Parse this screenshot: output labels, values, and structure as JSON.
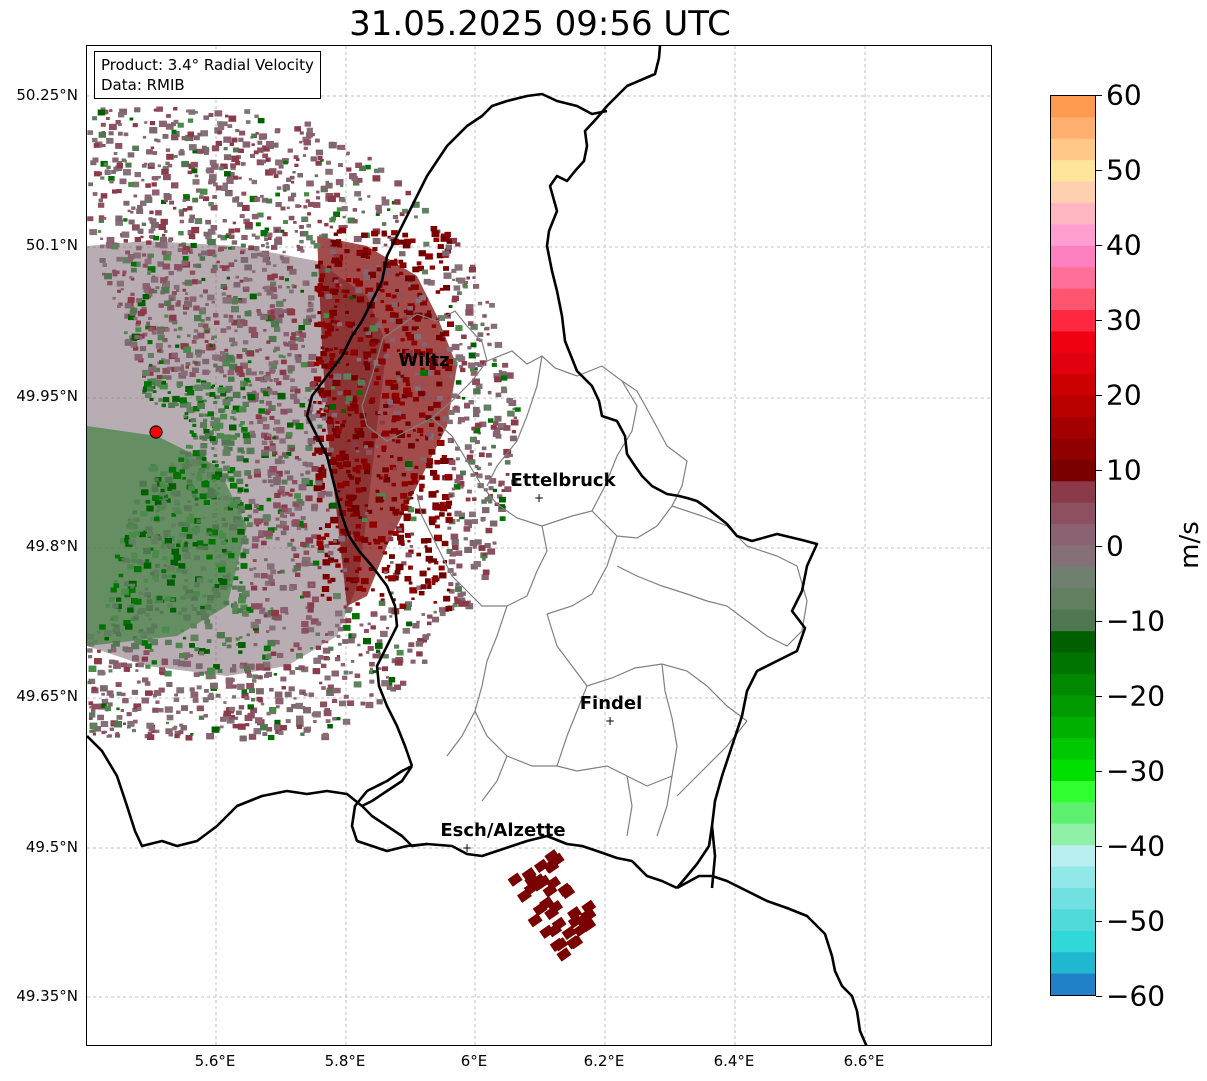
{
  "title": "31.05.2025 09:56 UTC",
  "info_box": {
    "product": "Product: 3.4° Radial Velocity",
    "data": "Data: RMIB"
  },
  "latitude_ticks": [
    "50.25°N",
    "50.1°N",
    "49.95°N",
    "49.8°N",
    "49.65°N",
    "49.5°N",
    "49.35°N"
  ],
  "longitude_ticks": [
    "5.6°E",
    "5.8°E",
    "6°E",
    "6.2°E",
    "6.4°E",
    "6.6°E"
  ],
  "cities": [
    {
      "name": "Wiltz",
      "marker": false
    },
    {
      "name": "Ettelbruck",
      "marker": true
    },
    {
      "name": "Findel",
      "marker": true
    },
    {
      "name": "Esch/Alzette",
      "marker": true
    }
  ],
  "colorbar": {
    "unit": "m/s",
    "ticks": [
      "60",
      "50",
      "40",
      "30",
      "20",
      "10",
      "0",
      "−10",
      "−20",
      "−30",
      "−40",
      "−50",
      "−60"
    ],
    "min": -60,
    "max": 60,
    "colors": [
      "#ff9a50",
      "#ffb070",
      "#ffc888",
      "#ffe59a",
      "#ffd0b0",
      "#ffb6c1",
      "#ff9ed0",
      "#ff80c0",
      "#ff6f9a",
      "#ff5570",
      "#ff2840",
      "#f00010",
      "#e00010",
      "#cc0000",
      "#b80000",
      "#a50000",
      "#900000",
      "#7a0000",
      "#8a3a48",
      "#8c5060",
      "#8a6272",
      "#867078",
      "#708070",
      "#608060",
      "#507850",
      "#006000",
      "#007400",
      "#008800",
      "#009a00",
      "#00b000",
      "#00c800",
      "#00e000",
      "#30ff30",
      "#60f070",
      "#90f0a8",
      "#b8f0f0",
      "#90e8e8",
      "#70e0e0",
      "#50dada",
      "#30d8d8",
      "#20b8d0",
      "#2080c8"
    ]
  },
  "radar_site": {
    "color": "#ff0000"
  }
}
